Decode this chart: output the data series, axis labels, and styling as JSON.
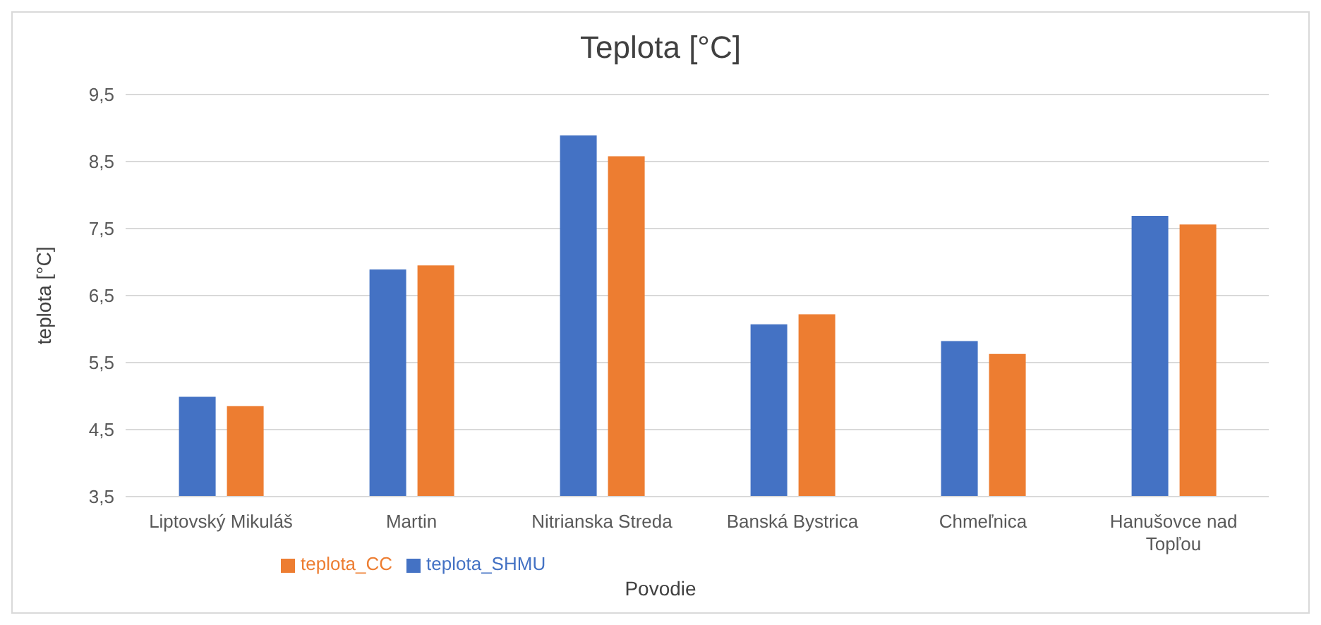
{
  "chart_data": {
    "type": "bar",
    "title": "Teplota [°C]",
    "xlabel": "Povodie",
    "ylabel": "teplota [°C]",
    "categories": [
      "Liptovský Mikuláš",
      "Martin",
      "Nitrianska Streda",
      "Banská Bystrica",
      "Chmeľnica",
      "Hanušovce nad Topľou"
    ],
    "series": [
      {
        "name": "teplota_SHMU",
        "color": "#4472c4",
        "values": [
          4.99,
          6.89,
          8.89,
          6.07,
          5.82,
          7.69
        ]
      },
      {
        "name": "teplota_CC",
        "color": "#ed7d31",
        "values": [
          4.85,
          6.95,
          8.58,
          6.22,
          5.63,
          7.56
        ]
      }
    ],
    "ylim": [
      3.5,
      9.5
    ],
    "yticks": [
      {
        "value": 3.5,
        "label": "3,5"
      },
      {
        "value": 4.5,
        "label": "4,5"
      },
      {
        "value": 5.5,
        "label": "5,5"
      },
      {
        "value": 6.5,
        "label": "6,5"
      },
      {
        "value": 7.5,
        "label": "7,5"
      },
      {
        "value": 8.5,
        "label": "8,5"
      },
      {
        "value": 9.5,
        "label": "9,5"
      }
    ],
    "grid": "y",
    "legend": "bottom"
  }
}
